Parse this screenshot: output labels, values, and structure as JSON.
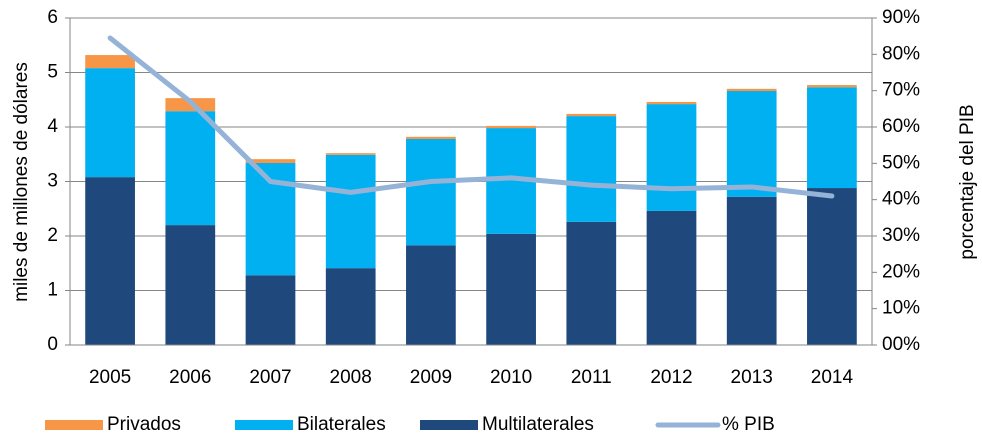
{
  "chart_data": {
    "type": "bar",
    "categories": [
      "2005",
      "2006",
      "2007",
      "2008",
      "2009",
      "2010",
      "2011",
      "2012",
      "2013",
      "2014"
    ],
    "series": [
      {
        "name": "Multilaterales",
        "color": "#1f497d",
        "values": [
          3.08,
          2.2,
          1.28,
          1.41,
          1.83,
          2.04,
          2.26,
          2.46,
          2.72,
          2.88
        ]
      },
      {
        "name": "Bilaterales",
        "color": "#00b0f0",
        "values": [
          2.0,
          2.09,
          2.06,
          2.08,
          1.95,
          1.94,
          1.94,
          1.96,
          1.94,
          1.85
        ]
      },
      {
        "name": "Privados",
        "color": "#f79646",
        "values": [
          0.24,
          0.24,
          0.07,
          0.03,
          0.04,
          0.04,
          0.04,
          0.04,
          0.04,
          0.04
        ]
      },
      {
        "name": "% PIB",
        "color": "#95b3d7",
        "type": "line",
        "axis": "y2",
        "values": [
          84.5,
          67,
          45,
          42,
          45,
          46,
          44,
          43,
          43.5,
          41
        ]
      }
    ],
    "legend_order": [
      "Privados",
      "Bilaterales",
      "Multilaterales",
      "% PIB"
    ],
    "y_label": "miles de millones de dólares",
    "y2_label": "porcentaje del PIB",
    "ylim": [
      0,
      6
    ],
    "yticks": [
      0,
      1,
      2,
      3,
      4,
      5,
      6
    ],
    "y2lim": [
      0,
      90
    ],
    "y2ticks": [
      {
        "value": 0,
        "label": "00%"
      },
      {
        "value": 10,
        "label": "10%"
      },
      {
        "value": 20,
        "label": "20%"
      },
      {
        "value": 30,
        "label": "30%"
      },
      {
        "value": 40,
        "label": "40%"
      },
      {
        "value": 50,
        "label": "50%"
      },
      {
        "value": 60,
        "label": "60%"
      },
      {
        "value": 70,
        "label": "70%"
      },
      {
        "value": 80,
        "label": "80%"
      },
      {
        "value": 90,
        "label": "90%"
      }
    ],
    "grid": true
  }
}
